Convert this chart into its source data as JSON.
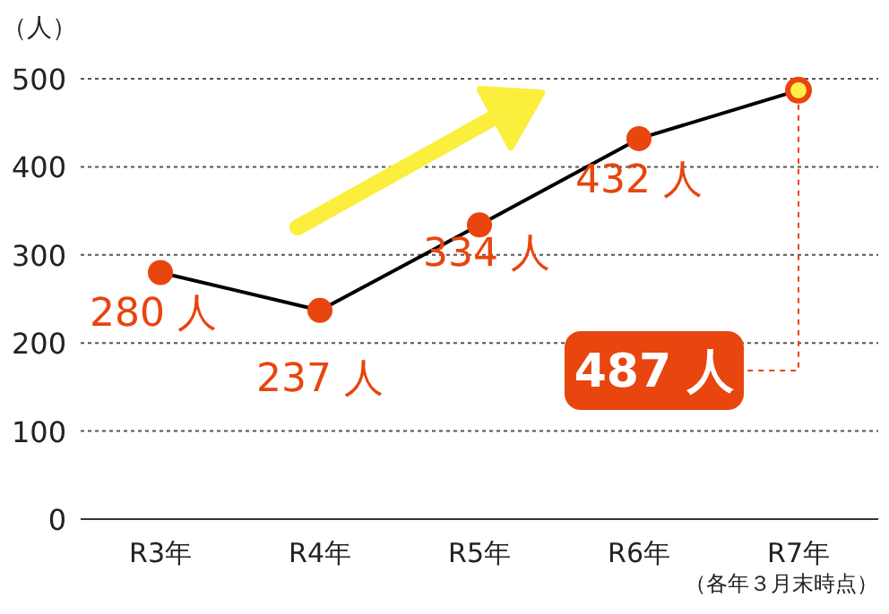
{
  "chart_data": {
    "type": "line",
    "ylabel": "（人）",
    "categories": [
      "R3年",
      "R4年",
      "R5年",
      "R6年",
      "R7年"
    ],
    "series": [
      {
        "color": "#000000",
        "colors": [
          "#e8450f",
          "#e8450f",
          "#e8450f",
          "#e8450f",
          "#ffef4a"
        ],
        "values": [
          280,
          237,
          334,
          432,
          487
        ],
        "value_labels": [
          "280 人",
          "237 人",
          "334 人",
          "432 人",
          "487 人"
        ]
      }
    ],
    "ylim": [
      0,
      500
    ],
    "yticks": [
      0,
      100,
      200,
      300,
      400,
      500
    ],
    "grid": "y",
    "marker": "circle",
    "line_style": "solid",
    "annotations": [
      "（各年３月末時点）"
    ]
  }
}
